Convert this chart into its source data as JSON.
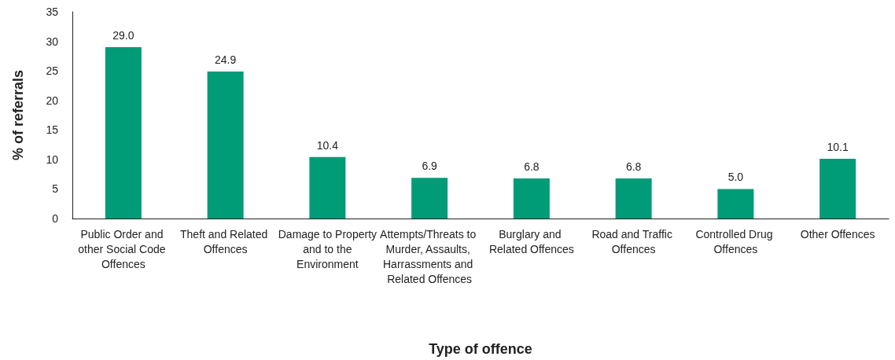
{
  "chart_data": {
    "type": "bar",
    "xlabel": "Type of offence",
    "ylabel": "% of referrals",
    "categories": [
      "Public Order and other Social Code Offences",
      "Theft and Related Offences",
      "Damage to Property and to the Environment",
      "Attempts/Threats to Murder, Assaults, Harrassments and Related Offences",
      "Burglary and Related Offences",
      "Road and Traffic Offences",
      "Controlled Drug Offences",
      "Other Offences"
    ],
    "values": [
      29.0,
      24.9,
      10.4,
      6.9,
      6.8,
      6.8,
      5.0,
      10.1
    ],
    "value_labels": [
      "29.0",
      "24.9",
      "10.4",
      "6.9",
      "6.8",
      "6.8",
      "5.0",
      "10.1"
    ],
    "color": "#009b77",
    "ylim": [
      0,
      35
    ],
    "yticks": [
      0,
      5,
      10,
      15,
      20,
      25,
      30,
      35
    ],
    "grid": false
  }
}
